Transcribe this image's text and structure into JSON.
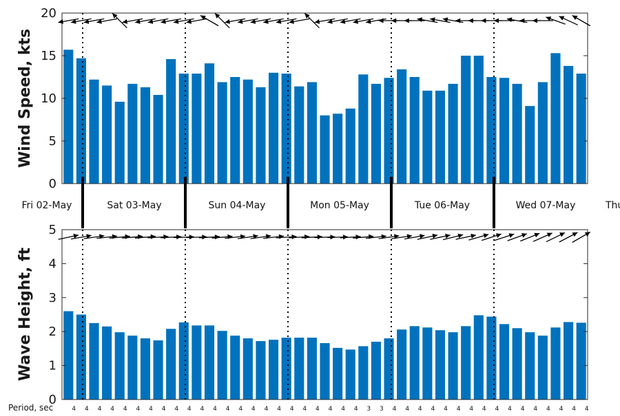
{
  "colors": {
    "bar": "#0072bd",
    "axis": "#262626",
    "arrow": "#000000",
    "divider": "#000000"
  },
  "chart_data": [
    {
      "type": "bar",
      "panel": "wind",
      "ylabel": "Wind Speed, kts",
      "ylim": [
        0,
        20
      ],
      "yticks": [
        "0",
        "5",
        "10",
        "15",
        "20"
      ],
      "grid": false,
      "values": [
        15.7,
        14.7,
        12.2,
        11.5,
        9.6,
        11.7,
        11.3,
        10.4,
        14.6,
        12.9,
        12.9,
        14.1,
        11.9,
        12.5,
        12.2,
        11.3,
        13.0,
        12.9,
        11.4,
        11.9,
        8.0,
        8.2,
        8.8,
        12.8,
        11.7,
        12.4,
        13.4,
        12.5,
        10.9,
        10.9,
        11.7,
        15.0,
        15.0,
        12.5,
        12.4,
        11.7,
        9.1,
        11.9,
        15.3,
        13.8,
        12.9
      ],
      "direction_arrows_deg": [
        170,
        170,
        170,
        170,
        225,
        170,
        170,
        170,
        170,
        170,
        170,
        210,
        225,
        170,
        170,
        170,
        170,
        170,
        170,
        225,
        170,
        170,
        170,
        170,
        170,
        180,
        180,
        180,
        190,
        190,
        190,
        180,
        180,
        180,
        180,
        190,
        180,
        180,
        200,
        205,
        210
      ]
    },
    {
      "type": "bar",
      "panel": "wave",
      "ylabel": "Wave Height, ft",
      "ylim": [
        0,
        5
      ],
      "yticks": [
        "0",
        "1",
        "2",
        "3",
        "4",
        "5"
      ],
      "grid": false,
      "values": [
        2.6,
        2.5,
        2.25,
        2.15,
        1.98,
        1.88,
        1.8,
        1.74,
        2.08,
        2.27,
        2.18,
        2.18,
        2.02,
        1.88,
        1.8,
        1.72,
        1.76,
        1.82,
        1.82,
        1.82,
        1.66,
        1.52,
        1.47,
        1.57,
        1.7,
        1.8,
        2.06,
        2.16,
        2.12,
        2.04,
        1.98,
        2.16,
        2.48,
        2.44,
        2.22,
        2.1,
        1.98,
        1.88,
        2.12,
        2.28,
        2.26
      ],
      "direction_arrows_deg": [
        -12,
        -10,
        -8,
        -6,
        -5,
        -5,
        -5,
        -4,
        -3,
        -2,
        -2,
        -3,
        -5,
        -6,
        -8,
        -8,
        -6,
        -4,
        -4,
        -3,
        -2,
        -2,
        -3,
        -5,
        -6,
        -8,
        -8,
        -10,
        -12,
        -12,
        -14,
        -12,
        -16,
        -18,
        -18,
        -20,
        -22,
        -24,
        -26,
        -28,
        -30
      ]
    }
  ],
  "days": [
    "Fri 02-May",
    "Sat 03-May",
    "Sun 04-May",
    "Mon 05-May",
    "Tue 06-May",
    "Wed 07-May",
    "Thu"
  ],
  "period": {
    "title": "Period, sec",
    "values": [
      "4",
      "4",
      "4",
      "4",
      "4",
      "4",
      "4",
      "4",
      "4",
      "4",
      "4",
      "4",
      "4",
      "4",
      "4",
      "4",
      "4",
      "4",
      "4",
      "4",
      "4",
      "4",
      "4",
      "3",
      "3",
      "4",
      "4",
      "4",
      "4",
      "4",
      "4",
      "4",
      "4",
      "4",
      "4",
      "4",
      "4",
      "4",
      "4",
      "4",
      "4"
    ]
  }
}
